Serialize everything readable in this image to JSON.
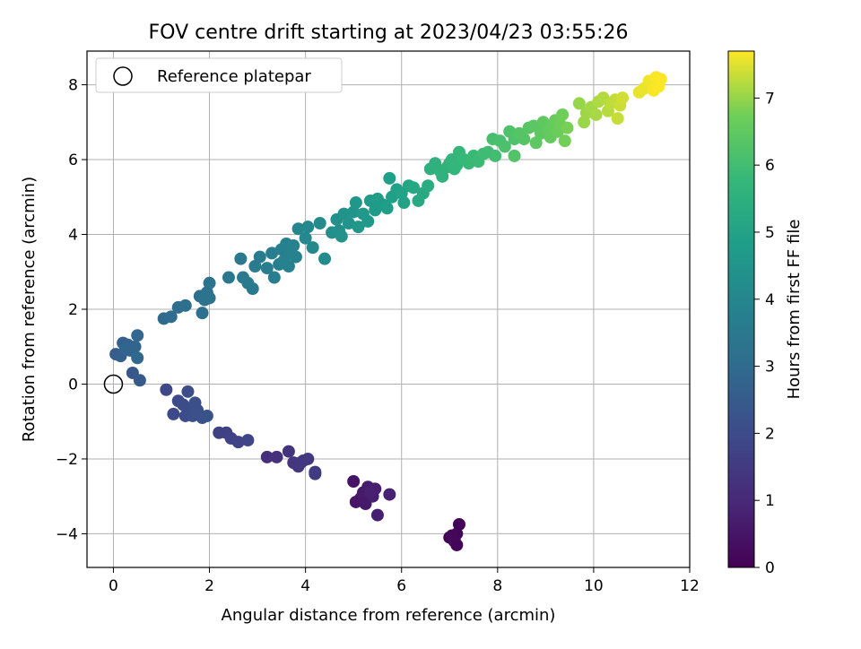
{
  "chart_data": {
    "type": "scatter",
    "title": "FOV centre drift starting at 2023/04/23 03:55:26",
    "xlabel": "Angular distance from reference (arcmin)",
    "ylabel": "Rotation from reference (arcmin)",
    "xlim": [
      -0.55,
      12
    ],
    "ylim": [
      -4.9,
      8.9
    ],
    "x_ticks": [
      0,
      2,
      4,
      6,
      8,
      10,
      12
    ],
    "y_ticks": [
      -4,
      -2,
      0,
      2,
      4,
      6,
      8
    ],
    "grid": true,
    "legend": {
      "position": "top-left",
      "entries": [
        "Reference platepar"
      ]
    },
    "reference_point": {
      "x": 0,
      "y": 0
    },
    "colorbar": {
      "label": "Hours from first FF file",
      "range": [
        0,
        7.7
      ],
      "ticks": [
        0,
        1,
        2,
        3,
        4,
        5,
        6,
        7
      ],
      "colormap": "viridis"
    },
    "points": [
      {
        "x": 7.0,
        "y": -4.1,
        "h": 0.0
      },
      {
        "x": 7.1,
        "y": -4.15,
        "h": 0.02
      },
      {
        "x": 7.15,
        "y": -4.3,
        "h": 0.05
      },
      {
        "x": 7.2,
        "y": -3.75,
        "h": 0.08
      },
      {
        "x": 7.15,
        "y": -4.0,
        "h": 0.1
      },
      {
        "x": 7.1,
        "y": -4.2,
        "h": 0.12
      },
      {
        "x": 7.05,
        "y": -4.05,
        "h": 0.14
      },
      {
        "x": 5.0,
        "y": -2.6,
        "h": 0.45
      },
      {
        "x": 5.05,
        "y": -3.15,
        "h": 0.5
      },
      {
        "x": 5.15,
        "y": -3.05,
        "h": 0.55
      },
      {
        "x": 5.2,
        "y": -2.9,
        "h": 0.58
      },
      {
        "x": 5.25,
        "y": -3.2,
        "h": 0.6
      },
      {
        "x": 5.3,
        "y": -2.75,
        "h": 0.65
      },
      {
        "x": 5.4,
        "y": -3.0,
        "h": 0.7
      },
      {
        "x": 5.45,
        "y": -2.8,
        "h": 0.72
      },
      {
        "x": 5.5,
        "y": -3.5,
        "h": 0.75
      },
      {
        "x": 5.75,
        "y": -2.95,
        "h": 0.8
      },
      {
        "x": 5.35,
        "y": -2.9,
        "h": 0.77
      },
      {
        "x": 3.2,
        "y": -1.95,
        "h": 1.2
      },
      {
        "x": 3.4,
        "y": -1.95,
        "h": 1.25
      },
      {
        "x": 3.65,
        "y": -1.8,
        "h": 1.3
      },
      {
        "x": 3.75,
        "y": -2.1,
        "h": 1.35
      },
      {
        "x": 3.85,
        "y": -2.2,
        "h": 1.38
      },
      {
        "x": 3.95,
        "y": -2.05,
        "h": 1.4
      },
      {
        "x": 4.05,
        "y": -2.0,
        "h": 1.45
      },
      {
        "x": 4.2,
        "y": -2.35,
        "h": 1.5
      },
      {
        "x": 4.2,
        "y": -2.4,
        "h": 1.52
      },
      {
        "x": 3.9,
        "y": -2.1,
        "h": 1.42
      },
      {
        "x": 2.2,
        "y": -1.3,
        "h": 1.65
      },
      {
        "x": 2.35,
        "y": -1.3,
        "h": 1.7
      },
      {
        "x": 2.45,
        "y": -1.45,
        "h": 1.73
      },
      {
        "x": 2.6,
        "y": -1.55,
        "h": 1.76
      },
      {
        "x": 2.8,
        "y": -1.5,
        "h": 1.8
      },
      {
        "x": 1.1,
        "y": -0.15,
        "h": 1.9
      },
      {
        "x": 1.25,
        "y": -0.8,
        "h": 1.93
      },
      {
        "x": 1.35,
        "y": -0.45,
        "h": 1.96
      },
      {
        "x": 1.45,
        "y": -0.55,
        "h": 2.0
      },
      {
        "x": 1.5,
        "y": -0.85,
        "h": 2.03
      },
      {
        "x": 1.55,
        "y": -0.2,
        "h": 2.05
      },
      {
        "x": 1.6,
        "y": -0.7,
        "h": 2.08
      },
      {
        "x": 1.65,
        "y": -0.85,
        "h": 2.1
      },
      {
        "x": 1.7,
        "y": -0.5,
        "h": 2.13
      },
      {
        "x": 1.75,
        "y": -0.7,
        "h": 2.15
      },
      {
        "x": 1.85,
        "y": -0.9,
        "h": 2.18
      },
      {
        "x": 1.95,
        "y": -0.85,
        "h": 2.2
      },
      {
        "x": 0.4,
        "y": 0.3,
        "h": 2.4
      },
      {
        "x": 0.55,
        "y": 0.1,
        "h": 2.45
      },
      {
        "x": 0.05,
        "y": 0.8,
        "h": 2.55
      },
      {
        "x": 0.15,
        "y": 0.75,
        "h": 2.6
      },
      {
        "x": 0.2,
        "y": 1.1,
        "h": 2.65
      },
      {
        "x": 0.3,
        "y": 1.05,
        "h": 2.7
      },
      {
        "x": 0.35,
        "y": 0.9,
        "h": 2.75
      },
      {
        "x": 0.45,
        "y": 1.0,
        "h": 2.8
      },
      {
        "x": 0.5,
        "y": 1.3,
        "h": 2.85
      },
      {
        "x": 0.5,
        "y": 0.7,
        "h": 2.9
      },
      {
        "x": 0.25,
        "y": 0.95,
        "h": 2.78
      },
      {
        "x": 1.05,
        "y": 1.75,
        "h": 3.0
      },
      {
        "x": 1.2,
        "y": 1.8,
        "h": 3.05
      },
      {
        "x": 1.35,
        "y": 2.05,
        "h": 3.1
      },
      {
        "x": 1.5,
        "y": 2.1,
        "h": 3.13
      },
      {
        "x": 1.8,
        "y": 2.35,
        "h": 3.2
      },
      {
        "x": 1.85,
        "y": 1.9,
        "h": 3.22
      },
      {
        "x": 1.9,
        "y": 2.25,
        "h": 3.25
      },
      {
        "x": 1.95,
        "y": 2.45,
        "h": 3.28
      },
      {
        "x": 2.0,
        "y": 2.7,
        "h": 3.3
      },
      {
        "x": 2.0,
        "y": 2.3,
        "h": 3.32
      },
      {
        "x": 2.4,
        "y": 2.85,
        "h": 3.45
      },
      {
        "x": 2.65,
        "y": 3.35,
        "h": 3.5
      },
      {
        "x": 2.7,
        "y": 2.85,
        "h": 3.52
      },
      {
        "x": 2.8,
        "y": 2.7,
        "h": 3.55
      },
      {
        "x": 2.9,
        "y": 2.55,
        "h": 3.57
      },
      {
        "x": 2.95,
        "y": 3.15,
        "h": 3.6
      },
      {
        "x": 3.05,
        "y": 3.4,
        "h": 3.63
      },
      {
        "x": 3.2,
        "y": 3.1,
        "h": 3.66
      },
      {
        "x": 3.3,
        "y": 3.5,
        "h": 3.7
      },
      {
        "x": 3.35,
        "y": 2.85,
        "h": 3.72
      },
      {
        "x": 3.45,
        "y": 3.2,
        "h": 3.75
      },
      {
        "x": 3.5,
        "y": 3.6,
        "h": 3.78
      },
      {
        "x": 3.55,
        "y": 3.3,
        "h": 3.8
      },
      {
        "x": 3.6,
        "y": 3.75,
        "h": 3.82
      },
      {
        "x": 3.65,
        "y": 3.15,
        "h": 3.84
      },
      {
        "x": 3.7,
        "y": 3.5,
        "h": 3.86
      },
      {
        "x": 3.75,
        "y": 3.7,
        "h": 3.88
      },
      {
        "x": 3.8,
        "y": 3.4,
        "h": 3.9
      },
      {
        "x": 3.85,
        "y": 4.15,
        "h": 4.0
      },
      {
        "x": 4.0,
        "y": 3.9,
        "h": 4.05
      },
      {
        "x": 4.05,
        "y": 4.2,
        "h": 4.08
      },
      {
        "x": 4.15,
        "y": 3.65,
        "h": 4.1
      },
      {
        "x": 4.3,
        "y": 4.3,
        "h": 4.14
      },
      {
        "x": 4.4,
        "y": 3.35,
        "h": 4.16
      },
      {
        "x": 4.55,
        "y": 4.05,
        "h": 4.3
      },
      {
        "x": 4.65,
        "y": 4.4,
        "h": 4.35
      },
      {
        "x": 4.7,
        "y": 4.1,
        "h": 4.38
      },
      {
        "x": 4.75,
        "y": 3.95,
        "h": 4.4
      },
      {
        "x": 4.8,
        "y": 4.55,
        "h": 4.43
      },
      {
        "x": 4.9,
        "y": 4.3,
        "h": 4.46
      },
      {
        "x": 5.0,
        "y": 4.6,
        "h": 4.5
      },
      {
        "x": 5.05,
        "y": 4.85,
        "h": 4.53
      },
      {
        "x": 5.1,
        "y": 4.2,
        "h": 4.56
      },
      {
        "x": 5.2,
        "y": 4.55,
        "h": 4.6
      },
      {
        "x": 5.3,
        "y": 4.35,
        "h": 4.63
      },
      {
        "x": 5.35,
        "y": 4.9,
        "h": 4.66
      },
      {
        "x": 5.45,
        "y": 4.65,
        "h": 4.7
      },
      {
        "x": 5.5,
        "y": 4.95,
        "h": 4.73
      },
      {
        "x": 5.6,
        "y": 4.8,
        "h": 4.76
      },
      {
        "x": 5.7,
        "y": 4.7,
        "h": 4.8
      },
      {
        "x": 5.75,
        "y": 5.5,
        "h": 4.85
      },
      {
        "x": 5.8,
        "y": 5.0,
        "h": 4.88
      },
      {
        "x": 5.9,
        "y": 5.2,
        "h": 4.92
      },
      {
        "x": 6.0,
        "y": 5.1,
        "h": 4.96
      },
      {
        "x": 6.05,
        "y": 4.85,
        "h": 5.0
      },
      {
        "x": 6.15,
        "y": 5.3,
        "h": 5.1
      },
      {
        "x": 6.25,
        "y": 5.25,
        "h": 5.15
      },
      {
        "x": 6.35,
        "y": 4.9,
        "h": 5.2
      },
      {
        "x": 6.45,
        "y": 5.1,
        "h": 5.25
      },
      {
        "x": 6.55,
        "y": 5.3,
        "h": 5.3
      },
      {
        "x": 6.6,
        "y": 5.75,
        "h": 5.45
      },
      {
        "x": 6.7,
        "y": 5.9,
        "h": 5.5
      },
      {
        "x": 6.8,
        "y": 5.7,
        "h": 5.53
      },
      {
        "x": 6.85,
        "y": 5.55,
        "h": 5.56
      },
      {
        "x": 6.95,
        "y": 5.8,
        "h": 5.6
      },
      {
        "x": 7.0,
        "y": 5.9,
        "h": 5.63
      },
      {
        "x": 7.05,
        "y": 6.0,
        "h": 5.66
      },
      {
        "x": 7.1,
        "y": 5.75,
        "h": 5.7
      },
      {
        "x": 7.15,
        "y": 5.85,
        "h": 5.73
      },
      {
        "x": 7.2,
        "y": 6.2,
        "h": 5.76
      },
      {
        "x": 7.3,
        "y": 6.0,
        "h": 5.8
      },
      {
        "x": 7.4,
        "y": 5.9,
        "h": 5.83
      },
      {
        "x": 7.5,
        "y": 6.1,
        "h": 5.86
      },
      {
        "x": 7.6,
        "y": 5.95,
        "h": 5.9
      },
      {
        "x": 7.7,
        "y": 6.15,
        "h": 5.93
      },
      {
        "x": 7.8,
        "y": 6.2,
        "h": 5.96
      },
      {
        "x": 7.95,
        "y": 6.1,
        "h": 6.0
      },
      {
        "x": 7.9,
        "y": 6.55,
        "h": 6.1
      },
      {
        "x": 8.05,
        "y": 6.5,
        "h": 6.13
      },
      {
        "x": 8.15,
        "y": 6.35,
        "h": 6.16
      },
      {
        "x": 8.25,
        "y": 6.75,
        "h": 6.2
      },
      {
        "x": 8.35,
        "y": 6.55,
        "h": 6.23
      },
      {
        "x": 8.35,
        "y": 6.1,
        "h": 6.26
      },
      {
        "x": 8.45,
        "y": 6.7,
        "h": 6.3
      },
      {
        "x": 8.55,
        "y": 6.55,
        "h": 6.33
      },
      {
        "x": 8.65,
        "y": 6.85,
        "h": 6.36
      },
      {
        "x": 8.75,
        "y": 6.9,
        "h": 6.4
      },
      {
        "x": 8.8,
        "y": 6.45,
        "h": 6.43
      },
      {
        "x": 8.9,
        "y": 6.7,
        "h": 6.46
      },
      {
        "x": 8.95,
        "y": 7.0,
        "h": 6.5
      },
      {
        "x": 9.05,
        "y": 6.8,
        "h": 6.53
      },
      {
        "x": 9.1,
        "y": 6.6,
        "h": 6.56
      },
      {
        "x": 9.15,
        "y": 6.9,
        "h": 6.6
      },
      {
        "x": 9.2,
        "y": 7.05,
        "h": 6.63
      },
      {
        "x": 9.25,
        "y": 6.75,
        "h": 6.66
      },
      {
        "x": 9.3,
        "y": 6.95,
        "h": 6.7
      },
      {
        "x": 9.35,
        "y": 7.2,
        "h": 6.73
      },
      {
        "x": 9.4,
        "y": 6.5,
        "h": 6.76
      },
      {
        "x": 9.45,
        "y": 6.85,
        "h": 6.8
      },
      {
        "x": 9.7,
        "y": 7.5,
        "h": 7.0
      },
      {
        "x": 9.8,
        "y": 7.0,
        "h": 7.03
      },
      {
        "x": 9.85,
        "y": 7.25,
        "h": 7.06
      },
      {
        "x": 9.95,
        "y": 7.4,
        "h": 7.1
      },
      {
        "x": 10.05,
        "y": 7.2,
        "h": 7.13
      },
      {
        "x": 10.1,
        "y": 7.55,
        "h": 7.16
      },
      {
        "x": 10.2,
        "y": 7.65,
        "h": 7.2
      },
      {
        "x": 10.3,
        "y": 7.3,
        "h": 7.23
      },
      {
        "x": 10.35,
        "y": 7.5,
        "h": 7.26
      },
      {
        "x": 10.45,
        "y": 7.6,
        "h": 7.3
      },
      {
        "x": 10.5,
        "y": 7.1,
        "h": 7.33
      },
      {
        "x": 10.55,
        "y": 7.45,
        "h": 7.36
      },
      {
        "x": 10.6,
        "y": 7.65,
        "h": 7.4
      },
      {
        "x": 10.95,
        "y": 7.8,
        "h": 7.55
      },
      {
        "x": 11.05,
        "y": 7.9,
        "h": 7.58
      },
      {
        "x": 11.15,
        "y": 8.1,
        "h": 7.62
      },
      {
        "x": 11.25,
        "y": 7.85,
        "h": 7.66
      },
      {
        "x": 11.3,
        "y": 8.2,
        "h": 7.68
      },
      {
        "x": 11.4,
        "y": 8.15,
        "h": 7.7
      },
      {
        "x": 11.35,
        "y": 7.95,
        "h": 7.69
      }
    ]
  }
}
